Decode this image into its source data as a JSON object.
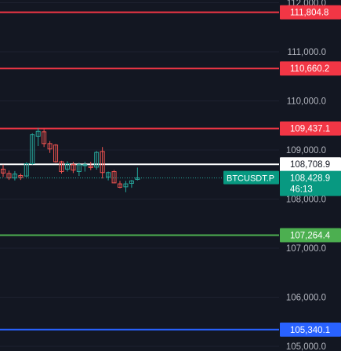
{
  "chart_data": {
    "type": "candlestick",
    "symbol": "BTCUSDT.P",
    "current_price": "108,428.9",
    "countdown": "46:13",
    "ylim": [
      104985,
      112055
    ],
    "y_ticks": [
      {
        "value": 105000,
        "label": "105,000.0"
      },
      {
        "value": 106000,
        "label": "106,000.0"
      },
      {
        "value": 107000,
        "label": "107,000.0"
      },
      {
        "value": 108000,
        "label": "108,000.0"
      },
      {
        "value": 109000,
        "label": "109,000.0"
      },
      {
        "value": 110000,
        "label": "110,000.0"
      },
      {
        "value": 111000,
        "label": "111,000.0"
      },
      {
        "value": 112000,
        "label": "112,000.0"
      }
    ],
    "horizontal_levels": [
      {
        "value": 111804.8,
        "label": "111,804.8",
        "color": "#f23645"
      },
      {
        "value": 110660.2,
        "label": "110,660.2",
        "color": "#f23645"
      },
      {
        "value": 109437.1,
        "label": "109,437.1",
        "color": "#f23645"
      },
      {
        "value": 108708.9,
        "label": "108,708.9",
        "color": "#ffffff"
      },
      {
        "value": 107264.4,
        "label": "107,264.4",
        "color": "#4caf50"
      },
      {
        "value": 105340.1,
        "label": "105,340.1",
        "color": "#2962ff"
      }
    ],
    "candles": [
      {
        "o": 108610,
        "h": 108700,
        "l": 108450,
        "c": 108530
      },
      {
        "o": 108520,
        "h": 108580,
        "l": 108390,
        "c": 108430
      },
      {
        "o": 108430,
        "h": 108570,
        "l": 108380,
        "c": 108510
      },
      {
        "o": 108480,
        "h": 108520,
        "l": 108390,
        "c": 108440
      },
      {
        "o": 108470,
        "h": 108750,
        "l": 108450,
        "c": 108720
      },
      {
        "o": 108720,
        "h": 109340,
        "l": 108700,
        "c": 109310
      },
      {
        "o": 109280,
        "h": 109450,
        "l": 109080,
        "c": 109380
      },
      {
        "o": 109370,
        "h": 109420,
        "l": 109060,
        "c": 109130
      },
      {
        "o": 109130,
        "h": 109180,
        "l": 108940,
        "c": 109020
      },
      {
        "o": 109100,
        "h": 109120,
        "l": 108740,
        "c": 108760
      },
      {
        "o": 108760,
        "h": 108780,
        "l": 108520,
        "c": 108560
      },
      {
        "o": 108610,
        "h": 108770,
        "l": 108560,
        "c": 108720
      },
      {
        "o": 108700,
        "h": 108760,
        "l": 108530,
        "c": 108590
      },
      {
        "o": 108560,
        "h": 108740,
        "l": 108470,
        "c": 108700
      },
      {
        "o": 108680,
        "h": 108760,
        "l": 108560,
        "c": 108700
      },
      {
        "o": 108670,
        "h": 108760,
        "l": 108590,
        "c": 108640
      },
      {
        "o": 108650,
        "h": 108980,
        "l": 108600,
        "c": 108950
      },
      {
        "o": 108970,
        "h": 109060,
        "l": 108420,
        "c": 108540
      },
      {
        "o": 108450,
        "h": 108560,
        "l": 108380,
        "c": 108540
      },
      {
        "o": 108560,
        "h": 108590,
        "l": 108320,
        "c": 108330
      },
      {
        "o": 108310,
        "h": 108370,
        "l": 108220,
        "c": 108240
      },
      {
        "o": 108250,
        "h": 108370,
        "l": 108140,
        "c": 108310
      },
      {
        "o": 108320,
        "h": 108390,
        "l": 108230,
        "c": 108370
      },
      {
        "o": 108400,
        "h": 108640,
        "l": 108380,
        "c": 108430
      }
    ]
  }
}
